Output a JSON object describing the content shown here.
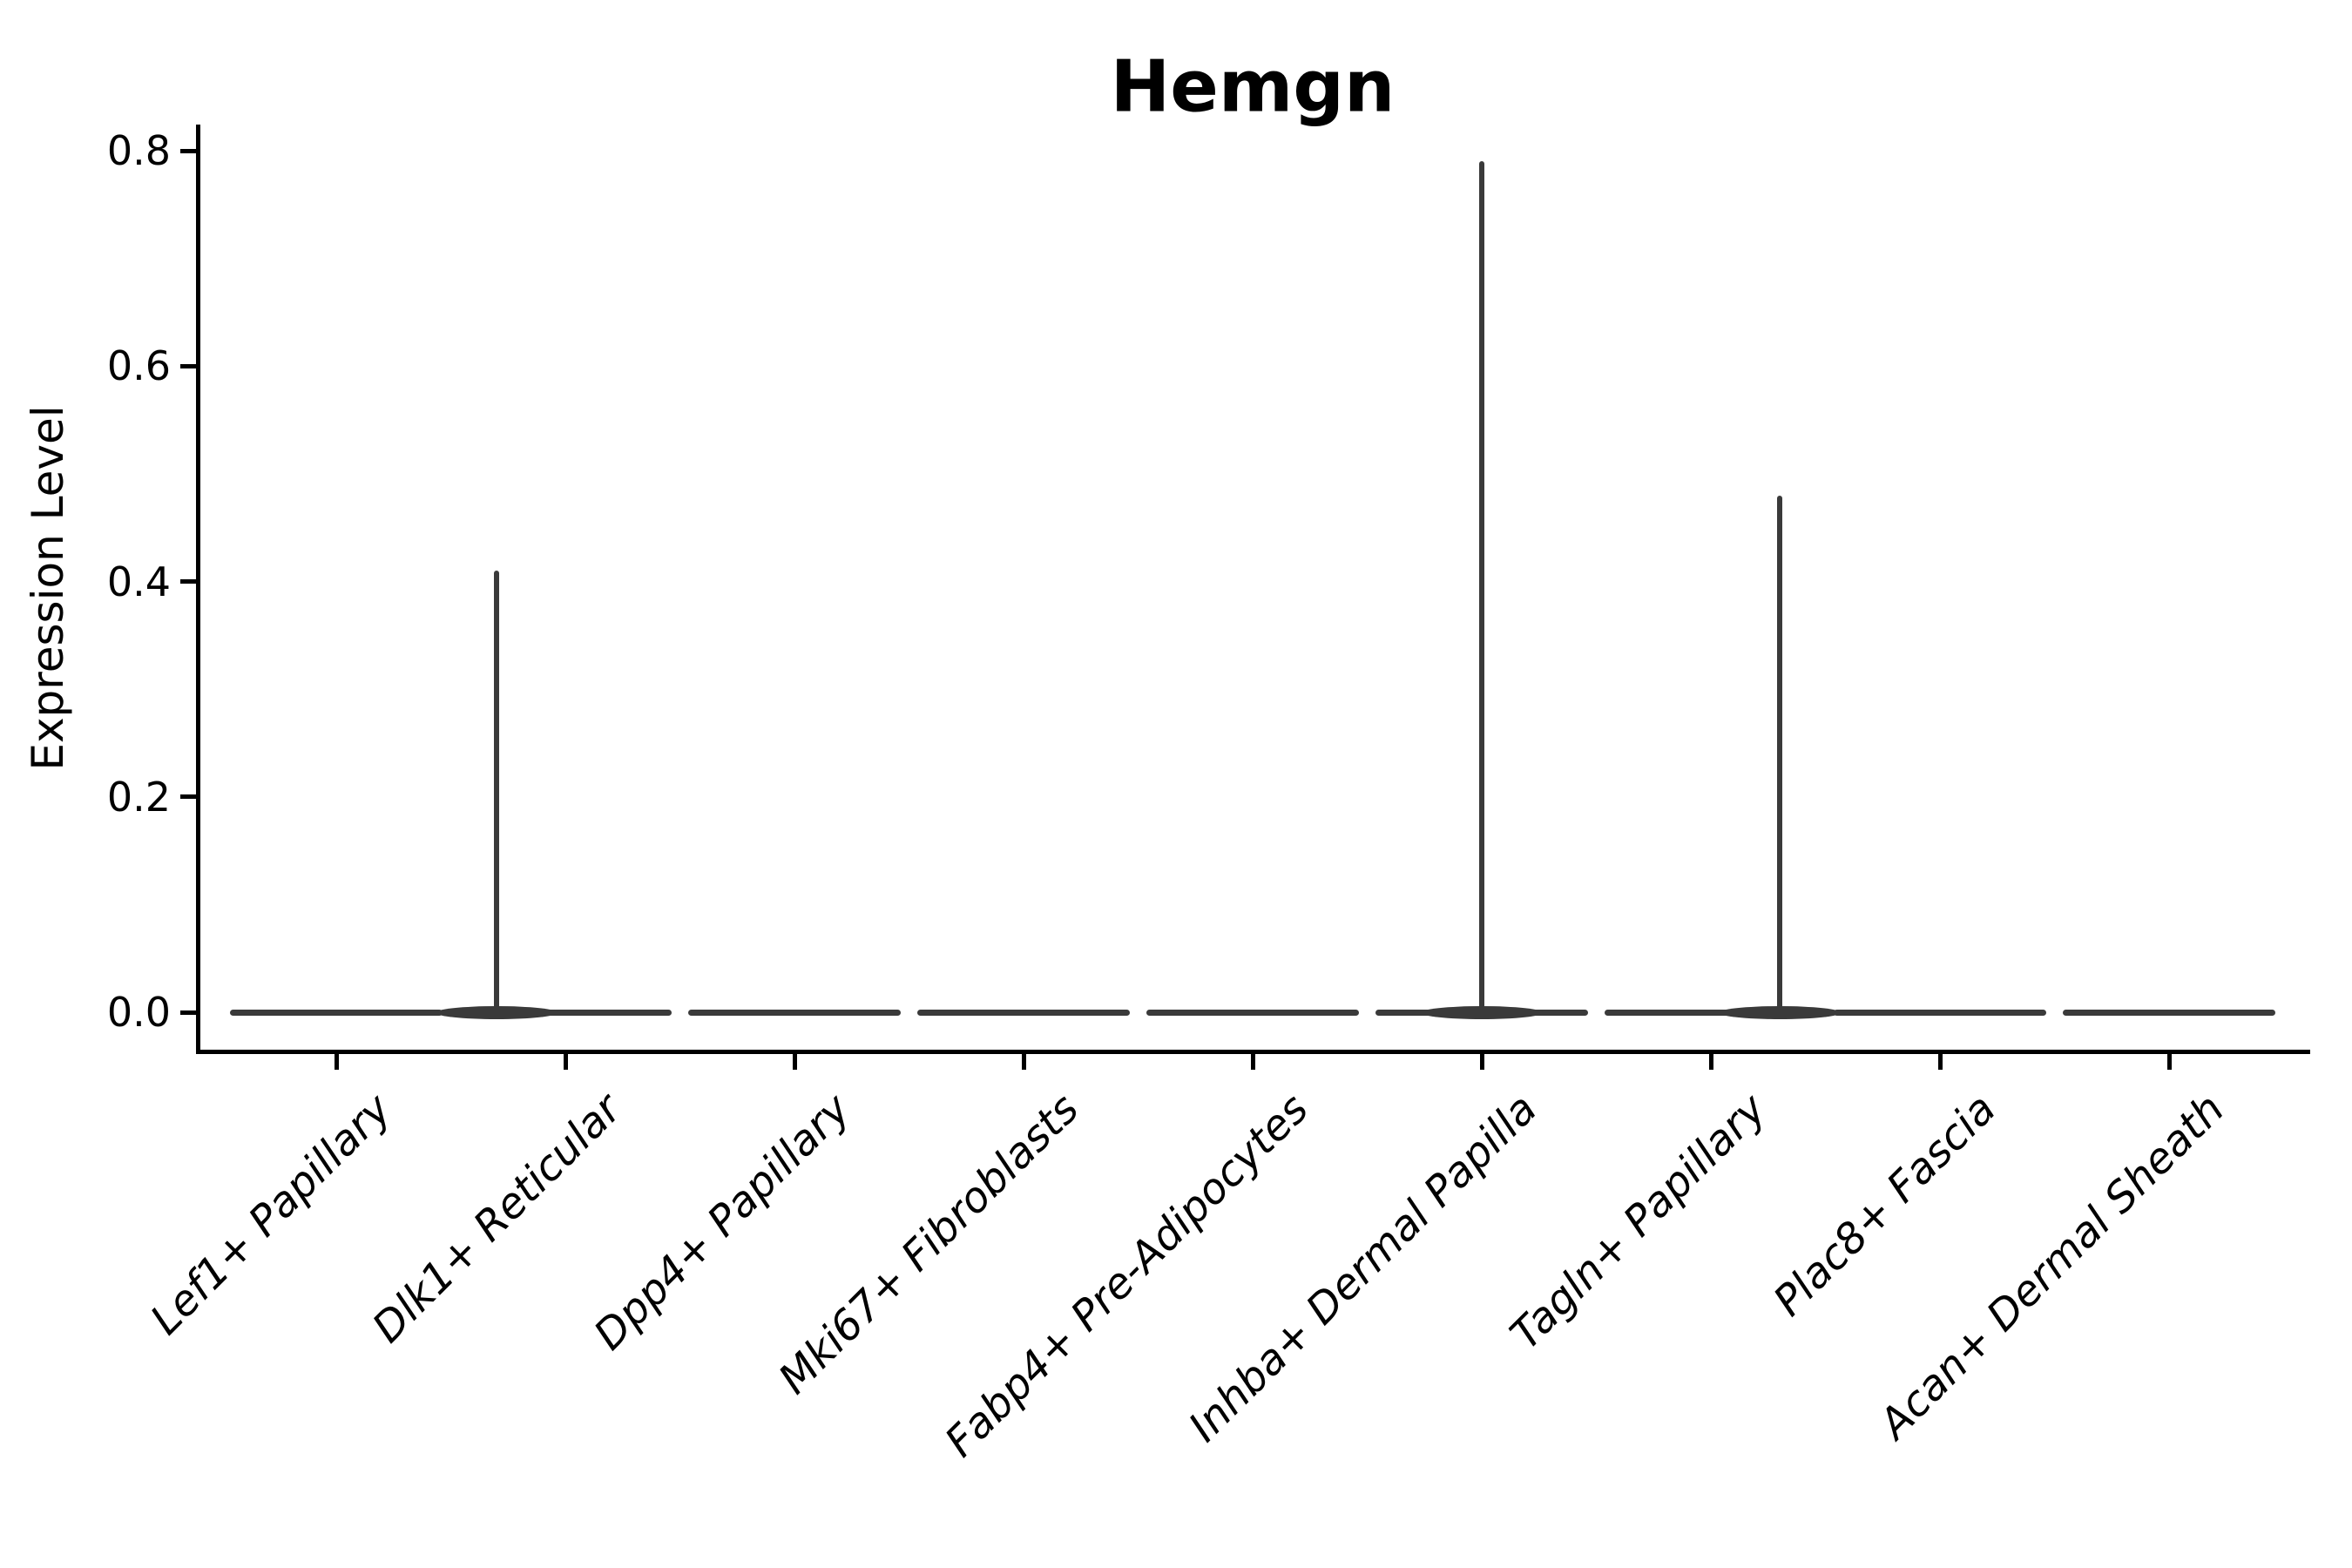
{
  "figure": {
    "title": "Hemgn",
    "ylabel": "Expression Level"
  },
  "chart_data": {
    "type": "violin",
    "title": "Hemgn",
    "xlabel": "",
    "ylabel": "Expression Level",
    "categories": [
      "Lef1+ Papillary",
      "Dlk1+ Reticular",
      "Dpp4+ Papillary",
      "Mki67+ Fibroblasts",
      "Fabp4+ Pre-Adipocytes",
      "Inhba+ Dermal Papilla",
      "Tagln+ Papillary",
      "Plac8+ Fascia",
      "Acan+ Dermal Sheath"
    ],
    "violins": [
      {
        "label": "Lef1+ Papillary",
        "body_at": 0.0,
        "spike_value": null,
        "spike_x_offset_frac": 0
      },
      {
        "label": "Dlk1+ Reticular",
        "body_at": 0.0,
        "spike_value": 0.41,
        "spike_x_offset_frac": -0.3
      },
      {
        "label": "Dpp4+ Papillary",
        "body_at": 0.0,
        "spike_value": null,
        "spike_x_offset_frac": 0
      },
      {
        "label": "Mki67+ Fibroblasts",
        "body_at": 0.0,
        "spike_value": null,
        "spike_x_offset_frac": 0
      },
      {
        "label": "Fabp4+ Pre-Adipocytes",
        "body_at": 0.0,
        "spike_value": null,
        "spike_x_offset_frac": 0
      },
      {
        "label": "Inhba+ Dermal Papilla",
        "body_at": 0.0,
        "spike_value": 0.79,
        "spike_x_offset_frac": 0
      },
      {
        "label": "Tagln+ Papillary",
        "body_at": 0.0,
        "spike_value": 0.48,
        "spike_x_offset_frac": 0.3
      },
      {
        "label": "Plac8+ Fascia",
        "body_at": 0.0,
        "spike_value": null,
        "spike_x_offset_frac": 0
      },
      {
        "label": "Acan+ Dermal Sheath",
        "body_at": 0.0,
        "spike_value": null,
        "spike_x_offset_frac": 0
      }
    ],
    "yticks": [
      0.0,
      0.2,
      0.4,
      0.6,
      0.8
    ],
    "ylim": [
      -0.036,
      0.824
    ],
    "grid": false,
    "legend": null,
    "colors": {
      "violin": "#3a3a3a",
      "axis": "#000000",
      "text": "#000000",
      "background": "#ffffff"
    }
  }
}
